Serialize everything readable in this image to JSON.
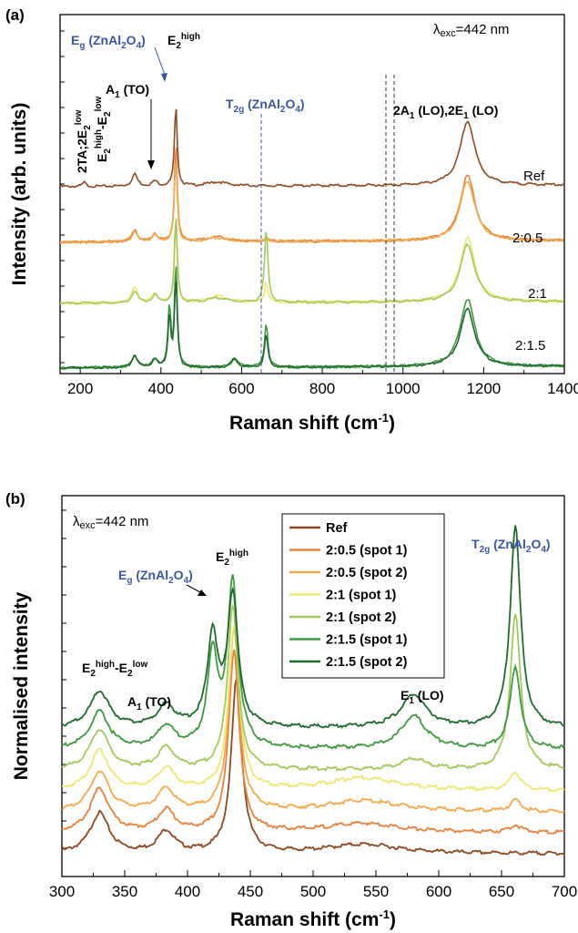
{
  "chart_data": [
    {
      "panel": "(a)",
      "type": "line",
      "xlabel": "Raman shift (cm-1)",
      "ylabel": "Intensity (arb. units)",
      "xlim": [
        150,
        1400
      ],
      "xticks": [
        "200",
        "400",
        "600",
        "800",
        "1000",
        "1200",
        "1400"
      ],
      "excitation": "λexc=442 nm",
      "series": [
        {
          "name": "Ref",
          "color": "#8b4a1f",
          "offset": 3,
          "peaks": [
            [
              210,
              5,
              0.05
            ],
            [
              335,
              8,
              0.15
            ],
            [
              385,
              8,
              0.06
            ],
            [
              437,
              4,
              1.0
            ],
            [
              540,
              30,
              0.05
            ],
            [
              1160,
              22,
              0.8
            ]
          ]
        },
        {
          "name": "2:0.5",
          "color": "#e8823a",
          "offset": 2,
          "peaks": [
            [
              335,
              8,
              0.15
            ],
            [
              385,
              8,
              0.1
            ],
            [
              437,
              4,
              1.25
            ],
            [
              540,
              30,
              0.06
            ],
            [
              661,
              5,
              0.05
            ],
            [
              1160,
              22,
              0.82
            ]
          ]
        },
        {
          "name": "2:0.5",
          "color": "#f5a94a",
          "offset": 2,
          "peaks": [
            [
              335,
              8,
              0.12
            ],
            [
              385,
              8,
              0.08
            ],
            [
              437,
              4,
              1.05
            ],
            [
              540,
              30,
              0.05
            ],
            [
              661,
              5,
              0.04
            ],
            [
              1160,
              22,
              0.75
            ]
          ]
        },
        {
          "name": "2:1",
          "color": "#eee873",
          "offset": 1,
          "peaks": [
            [
              335,
              8,
              0.2
            ],
            [
              385,
              8,
              0.12
            ],
            [
              437,
              4,
              1.0
            ],
            [
              540,
              30,
              0.08
            ],
            [
              661,
              5,
              0.25
            ],
            [
              1160,
              22,
              0.8
            ]
          ]
        },
        {
          "name": "2:1",
          "color": "#a3c95a",
          "offset": 1,
          "peaks": [
            [
              335,
              8,
              0.15
            ],
            [
              385,
              8,
              0.1
            ],
            [
              437,
              4,
              1.1
            ],
            [
              540,
              30,
              0.06
            ],
            [
              661,
              5,
              0.9
            ],
            [
              1160,
              22,
              0.72
            ]
          ]
        },
        {
          "name": "2:1.5",
          "color": "#3f9a3e",
          "offset": 0,
          "peaks": [
            [
              335,
              8,
              0.15
            ],
            [
              385,
              8,
              0.1
            ],
            [
              421,
              4,
              0.75
            ],
            [
              437,
              4,
              1.3
            ],
            [
              582,
              10,
              0.1
            ],
            [
              661,
              5,
              0.55
            ],
            [
              1160,
              22,
              0.85
            ]
          ]
        },
        {
          "name": "2:1.5",
          "color": "#1e6b2e",
          "offset": 0,
          "peaks": [
            [
              335,
              8,
              0.15
            ],
            [
              385,
              8,
              0.1
            ],
            [
              421,
              4,
              0.65
            ],
            [
              437,
              4,
              1.1
            ],
            [
              582,
              10,
              0.1
            ],
            [
              661,
              5,
              0.4
            ],
            [
              1160,
              22,
              0.72
            ]
          ]
        }
      ],
      "annotations": {
        "eg": "Eg (ZnAl2O4)",
        "e2high": "E2high",
        "a1to": "A1 (TO)",
        "e2diff": "E2high-E2low",
        "twota": "2TA;2E2low",
        "t2g": "T2g (ZnAl2O4)",
        "lo": "2A1 (LO),2E1 (LO)"
      }
    },
    {
      "panel": "(b)",
      "type": "line",
      "xlabel": "Raman shift (cm-1)",
      "ylabel": "Normalised intensity",
      "xlim": [
        300,
        700
      ],
      "xticks": [
        "300",
        "350",
        "400",
        "450",
        "500",
        "550",
        "600",
        "650",
        "700"
      ],
      "excitation": "λexc=442 nm",
      "series": [
        {
          "name": "Ref",
          "color": "#8b4a1f",
          "offset": 0,
          "peaks": [
            [
              330,
              9,
              0.22
            ],
            [
              383,
              8,
              0.12
            ],
            [
              439,
              5,
              0.95
            ],
            [
              540,
              35,
              0.05
            ]
          ]
        },
        {
          "name": "2:0.5 (spot 1)",
          "color": "#e8823a",
          "offset": 1,
          "peaks": [
            [
              330,
              9,
              0.24
            ],
            [
              383,
              8,
              0.12
            ],
            [
              437,
              5,
              1.0
            ],
            [
              540,
              35,
              0.05
            ],
            [
              661,
              5,
              0.04
            ]
          ]
        },
        {
          "name": "2:0.5 (spot 2)",
          "color": "#f5a94a",
          "offset": 2,
          "peaks": [
            [
              330,
              9,
              0.22
            ],
            [
              383,
              8,
              0.12
            ],
            [
              437,
              5,
              1.0
            ],
            [
              540,
              35,
              0.06
            ],
            [
              661,
              5,
              0.06
            ]
          ]
        },
        {
          "name": "2:1 (spot 1)",
          "color": "#eee873",
          "offset": 3,
          "peaks": [
            [
              330,
              9,
              0.22
            ],
            [
              383,
              8,
              0.12
            ],
            [
              437,
              5,
              0.9
            ],
            [
              540,
              35,
              0.07
            ],
            [
              661,
              5,
              0.1
            ]
          ]
        },
        {
          "name": "2:1 (spot 2)",
          "color": "#a3c95a",
          "offset": 4,
          "peaks": [
            [
              330,
              9,
              0.22
            ],
            [
              383,
              8,
              0.12
            ],
            [
              436,
              5,
              0.9
            ],
            [
              580,
              12,
              0.06
            ],
            [
              661,
              5,
              0.85
            ]
          ]
        },
        {
          "name": "2:1.5 (spot 1)",
          "color": "#3f9a3e",
          "offset": 5,
          "peaks": [
            [
              330,
              9,
              0.2
            ],
            [
              383,
              8,
              0.12
            ],
            [
              420,
              5,
              0.5
            ],
            [
              436,
              5,
              0.9
            ],
            [
              580,
              12,
              0.18
            ],
            [
              661,
              5,
              0.45
            ]
          ]
        },
        {
          "name": "2:1.5 (spot 2)",
          "color": "#1e6b2e",
          "offset": 6,
          "peaks": [
            [
              330,
              9,
              0.2
            ],
            [
              383,
              8,
              0.12
            ],
            [
              420,
              5,
              0.5
            ],
            [
              436,
              5,
              0.72
            ],
            [
              580,
              12,
              0.18
            ],
            [
              661,
              5,
              1.1
            ]
          ]
        }
      ],
      "annotations": {
        "eg": "Eg (ZnAl2O4)",
        "e2high": "E2high",
        "a1to": "A1 (TO)",
        "e2diff": "E2high-E2low",
        "e1lo": "E1 (LO)",
        "t2g": "T2g (ZnAl2O4)"
      }
    }
  ]
}
